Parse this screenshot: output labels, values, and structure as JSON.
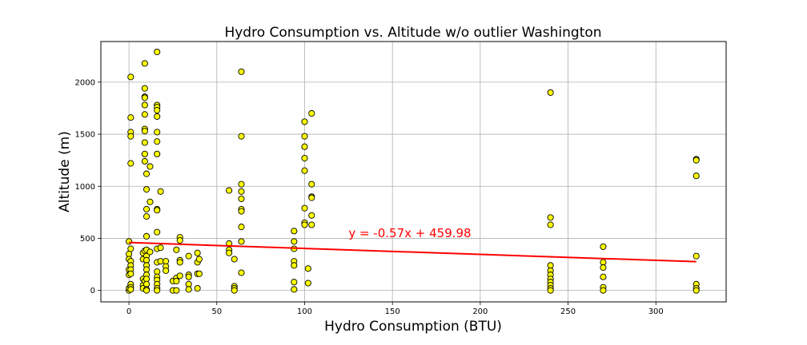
{
  "chart_data": {
    "type": "scatter",
    "title": "Hydro Consumption vs. Altitude w/o outlier Washington",
    "xlabel": "Hydro Consumption (BTU)",
    "ylabel": "Altitude (m)",
    "xlim": [
      -16,
      340
    ],
    "ylim": [
      -110,
      2390
    ],
    "xticks": [
      0,
      50,
      100,
      150,
      200,
      250,
      300
    ],
    "yticks": [
      0,
      500,
      1000,
      1500,
      2000
    ],
    "grid": true,
    "marker_fill": "#ffff00",
    "marker_edge": "#000000",
    "regression": {
      "label": "y = -0.57x + 459.98",
      "slope": -0.57,
      "intercept": 459.98,
      "x_range": [
        0,
        323
      ],
      "color": "#ff0000",
      "label_x": 125,
      "label_y": 510
    },
    "points": [
      [
        0,
        470
      ],
      [
        0,
        350
      ],
      [
        0,
        300
      ],
      [
        0,
        200
      ],
      [
        0,
        150
      ],
      [
        0,
        0
      ],
      [
        0,
        20
      ],
      [
        1,
        2050
      ],
      [
        1,
        1660
      ],
      [
        1,
        1520
      ],
      [
        1,
        1480
      ],
      [
        1,
        1220
      ],
      [
        1,
        400
      ],
      [
        1,
        280
      ],
      [
        1,
        240
      ],
      [
        1,
        200
      ],
      [
        1,
        160
      ],
      [
        1,
        60
      ],
      [
        1,
        30
      ],
      [
        1,
        10
      ],
      [
        8,
        360
      ],
      [
        8,
        300
      ],
      [
        8,
        110
      ],
      [
        8,
        50
      ],
      [
        8,
        20
      ],
      [
        9,
        2180
      ],
      [
        9,
        1940
      ],
      [
        9,
        1860
      ],
      [
        9,
        1850
      ],
      [
        9,
        1780
      ],
      [
        9,
        1690
      ],
      [
        9,
        1550
      ],
      [
        9,
        1530
      ],
      [
        9,
        1420
      ],
      [
        9,
        1310
      ],
      [
        9,
        1240
      ],
      [
        9,
        380
      ],
      [
        9,
        90
      ],
      [
        10,
        1120
      ],
      [
        10,
        970
      ],
      [
        10,
        780
      ],
      [
        10,
        710
      ],
      [
        10,
        520
      ],
      [
        10,
        390
      ],
      [
        10,
        330
      ],
      [
        10,
        290
      ],
      [
        10,
        240
      ],
      [
        10,
        200
      ],
      [
        10,
        150
      ],
      [
        10,
        110
      ],
      [
        10,
        60
      ],
      [
        10,
        10
      ],
      [
        10,
        0
      ],
      [
        12,
        1190
      ],
      [
        12,
        850
      ],
      [
        12,
        370
      ],
      [
        16,
        2290
      ],
      [
        16,
        1780
      ],
      [
        16,
        1760
      ],
      [
        16,
        1730
      ],
      [
        16,
        1670
      ],
      [
        16,
        1520
      ],
      [
        16,
        1430
      ],
      [
        16,
        1310
      ],
      [
        16,
        780
      ],
      [
        16,
        770
      ],
      [
        16,
        560
      ],
      [
        16,
        400
      ],
      [
        16,
        270
      ],
      [
        16,
        180
      ],
      [
        16,
        130
      ],
      [
        16,
        100
      ],
      [
        16,
        60
      ],
      [
        16,
        20
      ],
      [
        16,
        0
      ],
      [
        18,
        950
      ],
      [
        18,
        410
      ],
      [
        18,
        280
      ],
      [
        21,
        280
      ],
      [
        21,
        230
      ],
      [
        21,
        190
      ],
      [
        25,
        90
      ],
      [
        25,
        0
      ],
      [
        27,
        390
      ],
      [
        27,
        120
      ],
      [
        27,
        90
      ],
      [
        27,
        0
      ],
      [
        29,
        510
      ],
      [
        29,
        480
      ],
      [
        29,
        290
      ],
      [
        29,
        270
      ],
      [
        29,
        140
      ],
      [
        34,
        330
      ],
      [
        34,
        150
      ],
      [
        34,
        130
      ],
      [
        34,
        60
      ],
      [
        34,
        10
      ],
      [
        39,
        360
      ],
      [
        39,
        270
      ],
      [
        39,
        160
      ],
      [
        39,
        20
      ],
      [
        40,
        300
      ],
      [
        40,
        160
      ],
      [
        57,
        960
      ],
      [
        57,
        450
      ],
      [
        57,
        390
      ],
      [
        57,
        360
      ],
      [
        60,
        300
      ],
      [
        60,
        40
      ],
      [
        60,
        20
      ],
      [
        60,
        0
      ],
      [
        64,
        2100
      ],
      [
        64,
        1480
      ],
      [
        64,
        1020
      ],
      [
        64,
        950
      ],
      [
        64,
        880
      ],
      [
        64,
        780
      ],
      [
        64,
        760
      ],
      [
        64,
        610
      ],
      [
        64,
        470
      ],
      [
        64,
        170
      ],
      [
        94,
        570
      ],
      [
        94,
        470
      ],
      [
        94,
        400
      ],
      [
        94,
        280
      ],
      [
        94,
        240
      ],
      [
        94,
        80
      ],
      [
        94,
        10
      ],
      [
        100,
        1620
      ],
      [
        100,
        1480
      ],
      [
        100,
        1380
      ],
      [
        100,
        1270
      ],
      [
        100,
        1150
      ],
      [
        100,
        790
      ],
      [
        100,
        650
      ],
      [
        100,
        630
      ],
      [
        102,
        210
      ],
      [
        102,
        70
      ],
      [
        104,
        1700
      ],
      [
        104,
        1020
      ],
      [
        104,
        900
      ],
      [
        104,
        890
      ],
      [
        104,
        720
      ],
      [
        104,
        630
      ],
      [
        240,
        1900
      ],
      [
        240,
        700
      ],
      [
        240,
        630
      ],
      [
        240,
        240
      ],
      [
        240,
        190
      ],
      [
        240,
        150
      ],
      [
        240,
        110
      ],
      [
        240,
        80
      ],
      [
        240,
        50
      ],
      [
        240,
        20
      ],
      [
        240,
        0
      ],
      [
        270,
        420
      ],
      [
        270,
        270
      ],
      [
        270,
        220
      ],
      [
        270,
        130
      ],
      [
        270,
        30
      ],
      [
        270,
        0
      ],
      [
        323,
        1260
      ],
      [
        323,
        1250
      ],
      [
        323,
        1100
      ],
      [
        323,
        330
      ],
      [
        323,
        60
      ],
      [
        323,
        20
      ],
      [
        323,
        0
      ]
    ]
  }
}
